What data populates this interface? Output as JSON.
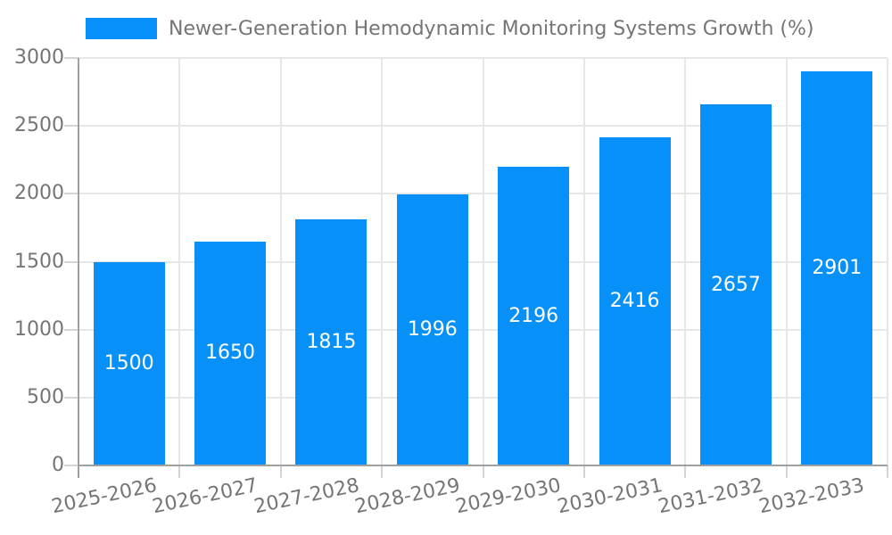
{
  "chart_data": {
    "type": "bar",
    "title": "",
    "legend": "Newer-Generation Hemodynamic Monitoring Systems Growth (%)",
    "legend_position": "top-left",
    "categories": [
      "2025-2026",
      "2026-2027",
      "2027-2028",
      "2028-2029",
      "2029-2030",
      "2030-2031",
      "2031-2032",
      "2032-2033"
    ],
    "values": [
      1500,
      1650,
      1815,
      1996,
      2196,
      2416,
      2657,
      2901
    ],
    "xlabel": "",
    "ylabel": "",
    "ylim": [
      0,
      3000
    ],
    "yticks": [
      0,
      500,
      1000,
      1500,
      2000,
      2500,
      3000
    ],
    "grid": "both",
    "value_labels": "inside-center",
    "x_label_rotation_deg": -12,
    "colors": {
      "bar": "#0791f8",
      "value_label": "#ffffff",
      "axis_text": "#757575",
      "gridline": "#e7e7e7",
      "axis_line": "#a0a0a0",
      "tick": "#d4d4d4",
      "background": "#ffffff"
    }
  }
}
